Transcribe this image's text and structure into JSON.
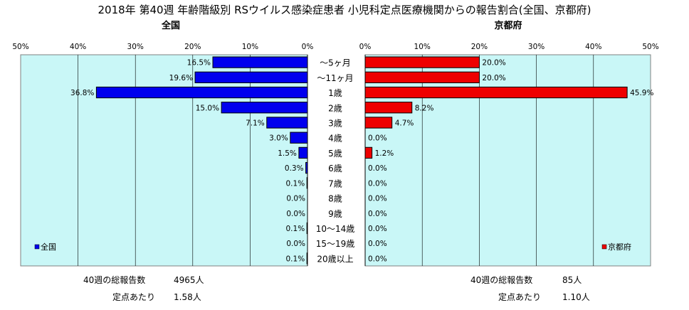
{
  "title": "2018年 第40週 年齢階級別 RSウイルス感染症患者 小児科定点医療機関からの報告割合(全国、京都府)",
  "colors": {
    "national": "#0000ee",
    "kyoto": "#ee0000",
    "plot_bg": "#c9f7f7"
  },
  "chart_data": [
    {
      "type": "bar",
      "orientation": "horizontal-left",
      "subtitle": "全国",
      "legend": "全国",
      "legend_position": "bottom-left",
      "xlim": [
        50,
        0
      ],
      "xticks": [
        "50%",
        "40%",
        "30%",
        "20%",
        "10%",
        "0%"
      ],
      "xtick_values": [
        50,
        40,
        30,
        20,
        10,
        0
      ],
      "grid": true,
      "categories": [
        "～5ヶ月",
        "～11ヶ月",
        "1歳",
        "2歳",
        "3歳",
        "4歳",
        "5歳",
        "6歳",
        "7歳",
        "8歳",
        "9歳",
        "10～14歳",
        "15～19歳",
        "20歳以上"
      ],
      "values": [
        16.5,
        19.6,
        36.8,
        15.0,
        7.1,
        3.0,
        1.5,
        0.3,
        0.1,
        0.0,
        0.0,
        0.1,
        0.0,
        0.1
      ],
      "labels": [
        "16.5%",
        "19.6%",
        "36.8%",
        "15.0%",
        "7.1%",
        "3.0%",
        "1.5%",
        "0.3%",
        "0.1%",
        "0.0%",
        "0.0%",
        "0.1%",
        "0.0%",
        "0.1%"
      ]
    },
    {
      "type": "bar",
      "orientation": "horizontal-right",
      "subtitle": "京都府",
      "legend": "京都府",
      "legend_position": "bottom-right",
      "xlim": [
        0,
        50
      ],
      "xticks": [
        "0%",
        "10%",
        "20%",
        "30%",
        "40%",
        "50%"
      ],
      "xtick_values": [
        0,
        10,
        20,
        30,
        40,
        50
      ],
      "grid": true,
      "categories": [
        "～5ヶ月",
        "～11ヶ月",
        "1歳",
        "2歳",
        "3歳",
        "4歳",
        "5歳",
        "6歳",
        "7歳",
        "8歳",
        "9歳",
        "10～14歳",
        "15～19歳",
        "20歳以上"
      ],
      "values": [
        20.0,
        20.0,
        45.9,
        8.2,
        4.7,
        0.0,
        1.2,
        0.0,
        0.0,
        0.0,
        0.0,
        0.0,
        0.0,
        0.0
      ],
      "labels": [
        "20.0%",
        "20.0%",
        "45.9%",
        "8.2%",
        "4.7%",
        "0.0%",
        "1.2%",
        "0.0%",
        "0.0%",
        "0.0%",
        "0.0%",
        "0.0%",
        "0.0%",
        "0.0%"
      ]
    }
  ],
  "footer": {
    "national": {
      "total_label": "40週の総報告数",
      "total_value": "4965人",
      "per_label": "定点あたり",
      "per_value": "1.58人"
    },
    "kyoto": {
      "total_label": "40週の総報告数",
      "total_value": "85人",
      "per_label": "定点あたり",
      "per_value": "1.10人"
    }
  }
}
